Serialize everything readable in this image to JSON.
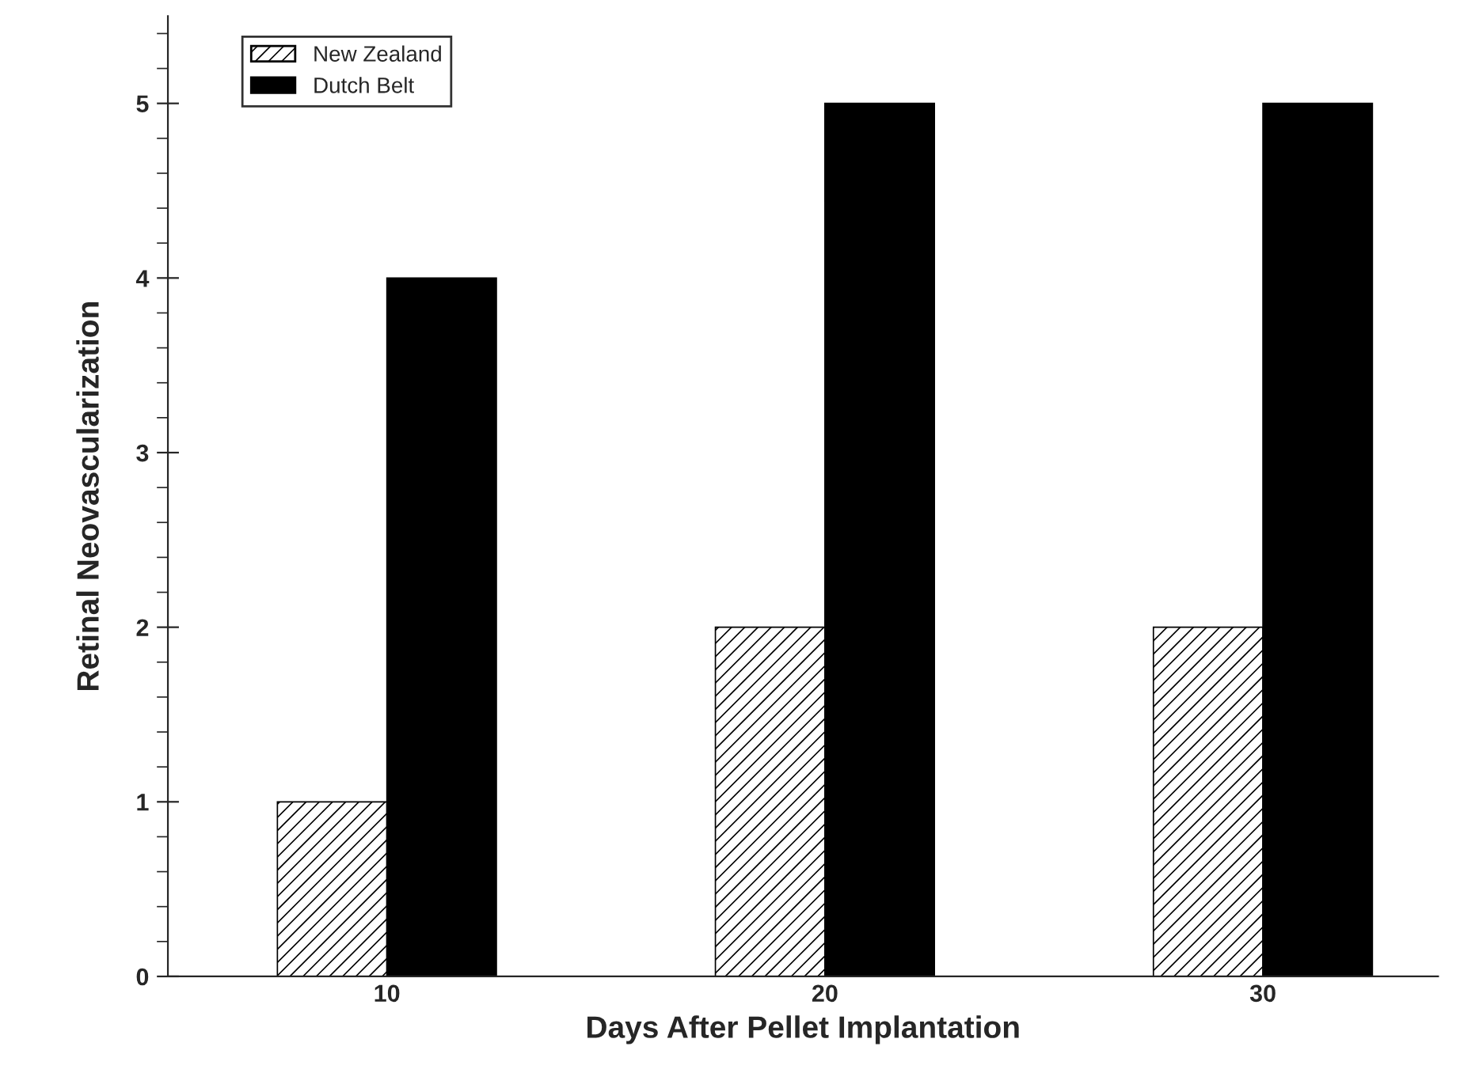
{
  "chart_data": {
    "type": "bar",
    "xlabel": "Days After Pellet Implantation",
    "ylabel": "Retinal Neovascularization",
    "categories": [
      "10",
      "20",
      "30"
    ],
    "series": [
      {
        "name": "New Zealand",
        "color": "#000000",
        "values": [
          1,
          2,
          2
        ]
      },
      {
        "name": "Dutch Belt",
        "color": "#000000",
        "values": [
          4,
          5,
          5
        ]
      }
    ],
    "ylim": [
      0,
      5.5
    ],
    "yticks": [
      0,
      1,
      2,
      3,
      4,
      5
    ],
    "grid": false,
    "legend": "top left"
  }
}
